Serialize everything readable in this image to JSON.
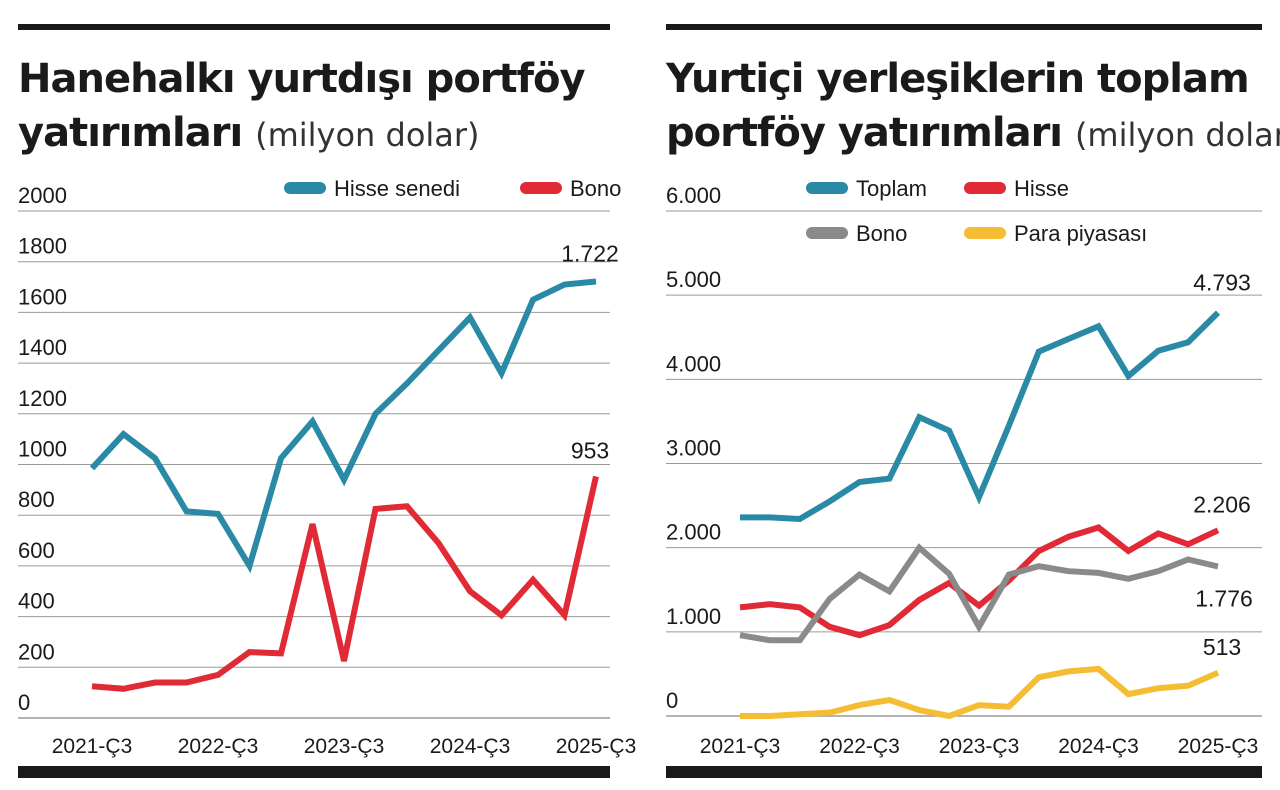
{
  "colors": {
    "teal": "#2a8aa6",
    "red": "#e02a36",
    "gray": "#8a8a8a",
    "yellow": "#f5bd33",
    "grid": "#9a9a9a",
    "bar": "#1a1a1a"
  },
  "left": {
    "title_line1": "Hanehalkı yurtdışı portföy",
    "title_line2": "yatırımları",
    "unit": "(milyon dolar)",
    "chart_data": {
      "type": "line",
      "ylim": [
        0,
        2000
      ],
      "yticks": [
        "0",
        "200",
        "400",
        "600",
        "800",
        "1000",
        "1200",
        "1400",
        "1600",
        "1800",
        "2000"
      ],
      "x_tick_labels": [
        "2021-Ç3",
        "2022-Ç3",
        "2023-Ç3",
        "2024-Ç3",
        "2025-Ç3"
      ],
      "legend": [
        "Hisse senedi",
        "Bono"
      ],
      "series": [
        {
          "name": "Hisse senedi",
          "color": "teal",
          "values": [
            985,
            1120,
            1025,
            815,
            805,
            600,
            1025,
            1170,
            940,
            1200,
            1320,
            1450,
            1580,
            1360,
            1650,
            1710,
            1722
          ],
          "end_label": "1.722"
        },
        {
          "name": "Bono",
          "color": "red",
          "values": [
            125,
            115,
            140,
            140,
            170,
            260,
            255,
            765,
            225,
            825,
            835,
            690,
            500,
            405,
            545,
            405,
            953
          ],
          "end_label": "953"
        }
      ]
    }
  },
  "right": {
    "title_line1": "Yurtiçi yerleşiklerin toplam",
    "title_line2": "portföy yatırımları",
    "unit": "(milyon dolar)",
    "chart_data": {
      "type": "line",
      "ylim": [
        0,
        6000
      ],
      "yticks": [
        "0",
        "1.000",
        "2.000",
        "3.000",
        "4.000",
        "5.000",
        "6.000"
      ],
      "x_tick_labels": [
        "2021-Ç3",
        "2022-Ç3",
        "2023-Ç3",
        "2024-Ç3",
        "2025-Ç3"
      ],
      "legend": [
        "Toplam",
        "Hisse",
        "Bono",
        "Para piyasası"
      ],
      "series": [
        {
          "name": "Toplam",
          "color": "teal",
          "values": [
            2360,
            2360,
            2340,
            2550,
            2780,
            2820,
            3550,
            3390,
            2600,
            3450,
            4330,
            4480,
            4630,
            4040,
            4340,
            4440,
            4793
          ],
          "end_label": "4.793"
        },
        {
          "name": "Hisse",
          "color": "red",
          "values": [
            1290,
            1330,
            1290,
            1060,
            960,
            1080,
            1380,
            1580,
            1310,
            1610,
            1960,
            2130,
            2240,
            1960,
            2170,
            2040,
            2206
          ],
          "end_label": "2.206"
        },
        {
          "name": "Bono",
          "color": "gray",
          "values": [
            960,
            900,
            900,
            1390,
            1680,
            1480,
            2000,
            1690,
            1060,
            1680,
            1780,
            1720,
            1700,
            1630,
            1720,
            1860,
            1776
          ],
          "end_label": "1.776"
        },
        {
          "name": "Para piyasası",
          "color": "yellow",
          "values": [
            0,
            0,
            20,
            40,
            130,
            190,
            70,
            0,
            130,
            110,
            460,
            530,
            560,
            260,
            330,
            360,
            513
          ],
          "end_label": "513"
        }
      ]
    }
  }
}
